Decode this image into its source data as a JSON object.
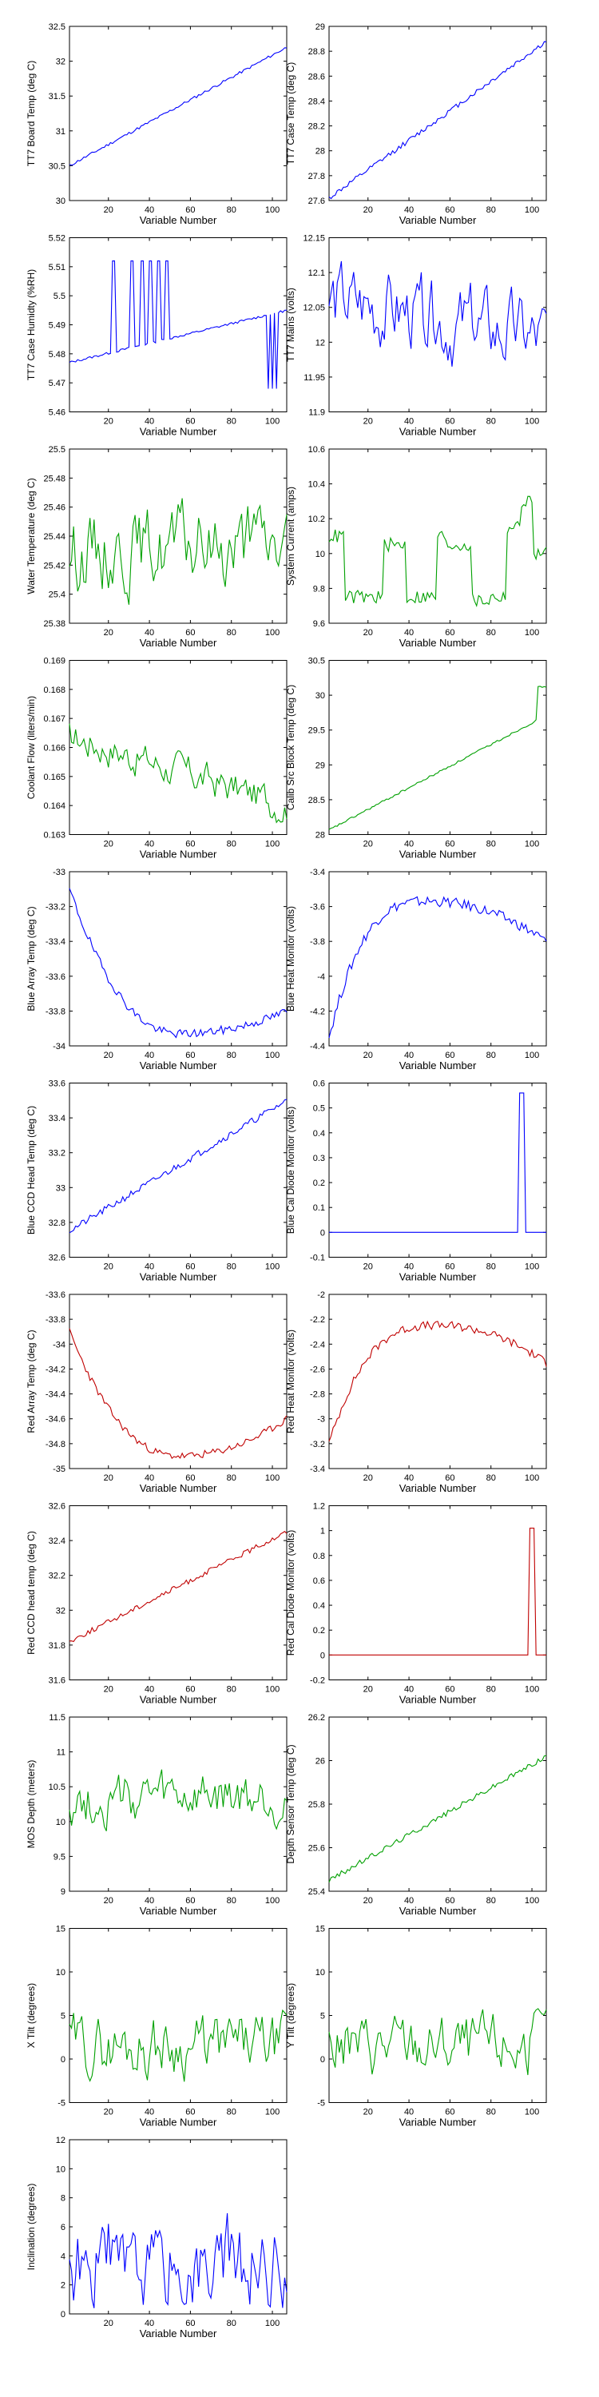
{
  "figure": {
    "common_xlabel": "Variable Number",
    "x_ticks": [
      20,
      40,
      60,
      80,
      100
    ],
    "x_range": [
      1,
      107
    ]
  },
  "chart_data": [
    {
      "type": "line",
      "ylabel": "TT7 Board Temp (deg C)",
      "ylim": [
        30,
        32.5
      ],
      "yticks": [
        "30",
        "30.5",
        "31",
        "31.5",
        "32",
        "32.5"
      ],
      "color": "#0000ff",
      "shape": "ramp",
      "start": 30.5,
      "end": 32.2,
      "noise": 0.02,
      "seed": 11
    },
    {
      "type": "line",
      "ylabel": "TT7 Case Temp (deg C)",
      "ylim": [
        27.6,
        29
      ],
      "yticks": [
        "27.6",
        "27.8",
        "28",
        "28.2",
        "28.4",
        "28.6",
        "28.8",
        "29"
      ],
      "color": "#0000ff",
      "shape": "ramp",
      "start": 27.62,
      "end": 28.88,
      "noise": 0.02,
      "seed": 12
    },
    {
      "type": "line",
      "ylabel": "TT7 Case Humidty (%RH)",
      "ylim": [
        5.46,
        5.52
      ],
      "yticks": [
        "5.46",
        "5.47",
        "5.48",
        "5.49",
        "5.5",
        "5.51",
        "5.52"
      ],
      "color": "#0000ff",
      "shape": "humidity",
      "start": 5.477,
      "end": 5.495,
      "noise": 0.0004,
      "seed": 13
    },
    {
      "type": "line",
      "ylabel": "TT7 Mains  (volts)",
      "ylim": [
        11.9,
        12.15
      ],
      "yticks": [
        "11.9",
        "11.95",
        "12",
        "12.05",
        "12.1",
        "12.15"
      ],
      "color": "#0000ff",
      "shape": "noisy",
      "base": 12.06,
      "trend": -0.06,
      "noise": 0.045,
      "seed": 14
    },
    {
      "type": "line",
      "ylabel": "Water Temperature (deg C)",
      "ylim": [
        25.38,
        25.5
      ],
      "yticks": [
        "25.38",
        "25.4",
        "25.42",
        "25.44",
        "25.46",
        "25.48",
        "25.5"
      ],
      "color": "#00a000",
      "shape": "noisy",
      "base": 25.43,
      "trend": 0.005,
      "noise": 0.022,
      "seed": 15
    },
    {
      "type": "line",
      "ylabel": "System Current (amps)",
      "ylim": [
        9.6,
        10.6
      ],
      "yticks": [
        "9.6",
        "9.8",
        "10",
        "10.2",
        "10.4",
        "10.6"
      ],
      "color": "#00a000",
      "shape": "steps",
      "levels": [
        [
          1,
          8,
          10.1
        ],
        [
          9,
          27,
          9.75
        ],
        [
          28,
          38,
          10.05
        ],
        [
          39,
          53,
          9.75
        ],
        [
          54,
          57,
          10.1
        ],
        [
          58,
          70,
          10.05
        ],
        [
          71,
          79,
          9.73
        ],
        [
          80,
          87,
          9.75
        ],
        [
          88,
          94,
          10.15
        ],
        [
          95,
          100,
          10.3
        ],
        [
          101,
          107,
          10.0
        ]
      ],
      "noise": 0.04,
      "seed": 16
    },
    {
      "type": "line",
      "ylabel": "Coolant Flow (liters/min)",
      "ylim": [
        0.163,
        0.169
      ],
      "yticks": [
        "0.163",
        "0.164",
        "0.165",
        "0.166",
        "0.167",
        "0.168",
        "0.169"
      ],
      "color": "#00a000",
      "shape": "noisy",
      "base": 0.1664,
      "trend": -0.0024,
      "noise": 0.0005,
      "seed": 17
    },
    {
      "type": "line",
      "ylabel": "Calib Src Block Temp (deg C)",
      "ylim": [
        28,
        30.5
      ],
      "yticks": [
        "28",
        "28.5",
        "29",
        "29.5",
        "30",
        "30.5"
      ],
      "color": "#00a000",
      "shape": "ramp_jump",
      "start": 28.05,
      "end": 29.65,
      "jump_at": 103,
      "jump_to": 30.12,
      "noise": 0.015,
      "seed": 18
    },
    {
      "type": "line",
      "ylabel": "Blue Array Temp (deg C)",
      "ylim": [
        -34,
        -33
      ],
      "yticks": [
        "-34",
        "-33.8",
        "-33.6",
        "-33.4",
        "-33.2",
        "-33"
      ],
      "color": "#0000ff",
      "shape": "ucurve",
      "start": -33.1,
      "min": -33.93,
      "min_at": 55,
      "end": -33.8,
      "noise": 0.025,
      "seed": 19
    },
    {
      "type": "line",
      "ylabel": "Blue Heat Monitor (volts)",
      "ylim": [
        -4.4,
        -3.4
      ],
      "yticks": [
        "-4.4",
        "-4.2",
        "-4",
        "-3.8",
        "-3.6",
        "-3.4"
      ],
      "color": "#0000ff",
      "shape": "invu",
      "start": -4.35,
      "max": -3.57,
      "max_at": 50,
      "end": -3.8,
      "noise": 0.03,
      "seed": 20
    },
    {
      "type": "line",
      "ylabel": "Blue CCD Head Temp (deg C)",
      "ylim": [
        32.6,
        33.6
      ],
      "yticks": [
        "32.6",
        "32.8",
        "33",
        "33.2",
        "33.4",
        "33.6"
      ],
      "color": "#0000ff",
      "shape": "ramp",
      "start": 32.75,
      "end": 33.5,
      "noise": 0.02,
      "seed": 21
    },
    {
      "type": "line",
      "ylabel": "Blue Cal Diode Monitor (volts)",
      "ylim": [
        -0.1,
        0.6
      ],
      "yticks": [
        "-0.1",
        "0",
        "0.1",
        "0.2",
        "0.3",
        "0.4",
        "0.5",
        "0.6"
      ],
      "color": "#0000ff",
      "shape": "spike",
      "base": 0,
      "spike_from": 94,
      "spike_to": 96,
      "spike_val": 0.56,
      "noise": 0,
      "seed": 22
    },
    {
      "type": "line",
      "ylabel": "Red Array Temp (deg C)",
      "ylim": [
        -35,
        -33.6
      ],
      "yticks": [
        "-35",
        "-34.8",
        "-34.6",
        "-34.4",
        "-34.2",
        "-34",
        "-33.8",
        "-33.6"
      ],
      "color": "#c00000",
      "shape": "ucurve",
      "start": -33.9,
      "min": -34.9,
      "min_at": 55,
      "end": -34.6,
      "noise": 0.03,
      "seed": 23
    },
    {
      "type": "line",
      "ylabel": "Red Heat Monitor (volts)",
      "ylim": [
        -3.4,
        -2
      ],
      "yticks": [
        "-3.4",
        "-3.2",
        "-3",
        "-2.8",
        "-2.6",
        "-2.4",
        "-2.2",
        "-2"
      ],
      "color": "#c00000",
      "shape": "invu",
      "start": -3.2,
      "max": -2.25,
      "max_at": 55,
      "end": -2.55,
      "noise": 0.035,
      "seed": 24
    },
    {
      "type": "line",
      "ylabel": "Red CCD head temp (deg C)",
      "ylim": [
        31.6,
        32.6
      ],
      "yticks": [
        "31.6",
        "31.8",
        "32",
        "32.2",
        "32.4",
        "32.6"
      ],
      "color": "#c00000",
      "shape": "ramp",
      "start": 31.82,
      "end": 32.45,
      "noise": 0.015,
      "seed": 25
    },
    {
      "type": "line",
      "ylabel": "Red Cal Diode Monitor (volts)",
      "ylim": [
        -0.2,
        1.2
      ],
      "yticks": [
        "-0.2",
        "0",
        "0.2",
        "0.4",
        "0.6",
        "0.8",
        "1",
        "1.2"
      ],
      "color": "#c00000",
      "shape": "spike",
      "base": 0,
      "spike_from": 99,
      "spike_to": 101,
      "spike_val": 1.02,
      "noise": 0,
      "seed": 26
    },
    {
      "type": "line",
      "ylabel": "MOS Depth  (meters)",
      "ylim": [
        9,
        11.5
      ],
      "yticks": [
        "9",
        "9.5",
        "10",
        "10.5",
        "11",
        "11.5"
      ],
      "color": "#00a000",
      "shape": "noisy",
      "base": 10.3,
      "trend": 0,
      "noise": 0.3,
      "seed": 27
    },
    {
      "type": "line",
      "ylabel": "Depth Sensor Temp (deg C)",
      "ylim": [
        25.4,
        26.2
      ],
      "yticks": [
        "25.4",
        "25.6",
        "25.8",
        "26",
        "26.2"
      ],
      "color": "#00a000",
      "shape": "ramp",
      "start": 25.45,
      "end": 26.02,
      "noise": 0.012,
      "seed": 28
    },
    {
      "type": "line",
      "ylabel": "X Tilt  (degrees)",
      "ylim": [
        -5,
        15
      ],
      "yticks": [
        "-5",
        "0",
        "5",
        "10",
        "15"
      ],
      "color": "#00a000",
      "shape": "noisy",
      "base": 1.5,
      "trend": 0,
      "noise": 2.8,
      "seed": 29
    },
    {
      "type": "line",
      "ylabel": "Y Tilt  (degrees)",
      "ylim": [
        -5,
        15
      ],
      "yticks": [
        "-5",
        "0",
        "5",
        "10",
        "15"
      ],
      "color": "#00a000",
      "shape": "noisy",
      "base": 1.5,
      "trend": 0,
      "noise": 2.8,
      "seed": 30
    },
    {
      "type": "line",
      "ylabel": "Inclination  (degrees)",
      "ylim": [
        0,
        12
      ],
      "yticks": [
        "0",
        "2",
        "4",
        "6",
        "8",
        "10",
        "12"
      ],
      "color": "#0000ff",
      "shape": "noisy_pos",
      "base": 3.2,
      "trend": 0,
      "noise": 2.3,
      "seed": 31
    }
  ]
}
